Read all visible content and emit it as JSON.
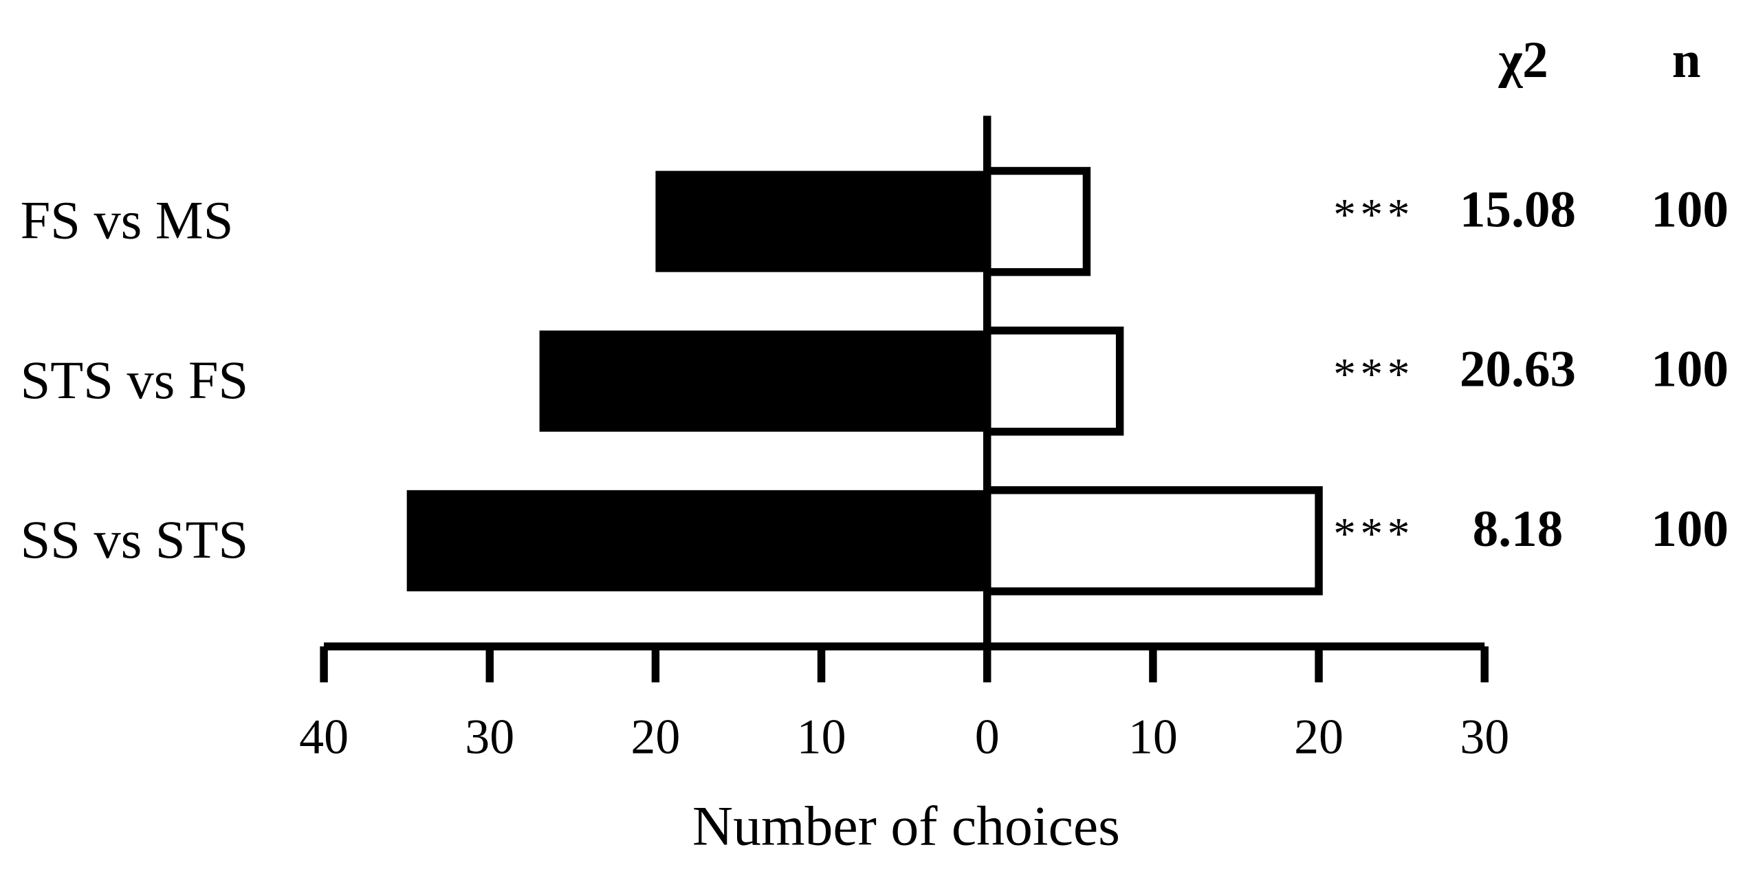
{
  "chart_data": {
    "type": "diverging-bar",
    "x_label": "Number of choices",
    "categories": [
      "FS vs MS",
      "STS vs FS",
      "SS vs STS"
    ],
    "series": [
      {
        "color": "#000000",
        "values": [
          -20,
          -27,
          -35
        ]
      },
      {
        "color": "#ffffff",
        "values": [
          6,
          8,
          20
        ]
      }
    ],
    "xlim": [
      -40,
      30
    ],
    "xticks": [
      {
        "value": -40,
        "label": "40"
      },
      {
        "value": -30,
        "label": "30"
      },
      {
        "value": -20,
        "label": "20"
      },
      {
        "value": -10,
        "label": "10"
      },
      0,
      10,
      20,
      30
    ],
    "table": {
      "headers": [
        "χ2",
        "n"
      ],
      "significance": [
        "***",
        "***",
        "***"
      ],
      "chi2": [
        15.08,
        20.63,
        8.18
      ],
      "n": [
        100,
        100,
        100
      ]
    }
  }
}
